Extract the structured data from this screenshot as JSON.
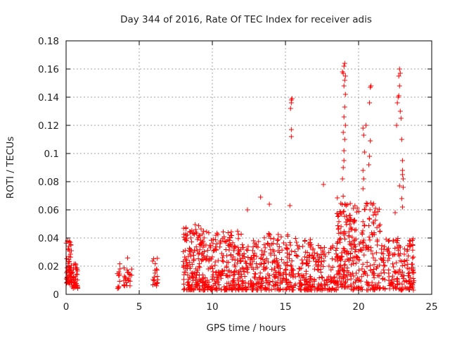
{
  "chart_data": {
    "type": "scatter",
    "title": "Day 344 of 2016, Rate Of TEC Index for receiver adis",
    "xlabel": "GPS time / hours",
    "ylabel": "ROTI / TECUs",
    "xlim": [
      0,
      25
    ],
    "ylim": [
      0,
      0.18
    ],
    "xticks": [
      "0",
      "5",
      "10",
      "15",
      "20",
      "25"
    ],
    "yticks": [
      "0",
      "0.02",
      "0.04",
      "0.06",
      "0.08",
      "0.1",
      "0.12",
      "0.14",
      "0.16",
      "0.18"
    ],
    "grid": true,
    "marker": "+",
    "color": "#ff0000",
    "series": [
      {
        "clusters": [
          {
            "x": [
              0.0,
              0.4
            ],
            "y": [
              0.008,
              0.038
            ],
            "n": 60
          },
          {
            "x": [
              0.4,
              0.8
            ],
            "y": [
              0.004,
              0.022
            ],
            "n": 40
          },
          {
            "x": [
              3.5,
              3.7
            ],
            "y": [
              0.004,
              0.023
            ],
            "n": 12
          },
          {
            "x": [
              3.9,
              4.4
            ],
            "y": [
              0.006,
              0.02
            ],
            "n": 18
          },
          {
            "x": [
              4.2,
              4.5
            ],
            "y": [
              0.01,
              0.029
            ],
            "n": 8
          },
          {
            "x": [
              5.9,
              6.3
            ],
            "y": [
              0.006,
              0.026
            ],
            "n": 20
          },
          {
            "x": [
              8.0,
              9.5
            ],
            "y": [
              0.003,
              0.05
            ],
            "n": 180
          },
          {
            "x": [
              9.5,
              12.0
            ],
            "y": [
              0.003,
              0.045
            ],
            "n": 220
          },
          {
            "x": [
              12.0,
              13.5
            ],
            "y": [
              0.003,
              0.04
            ],
            "n": 120
          },
          {
            "x": [
              13.5,
              15.2
            ],
            "y": [
              0.003,
              0.045
            ],
            "n": 140
          },
          {
            "x": [
              15.2,
              17.0
            ],
            "y": [
              0.003,
              0.04
            ],
            "n": 140
          },
          {
            "x": [
              17.0,
              18.5
            ],
            "y": [
              0.003,
              0.035
            ],
            "n": 100
          },
          {
            "x": [
              18.5,
              19.5
            ],
            "y": [
              0.005,
              0.07
            ],
            "n": 140
          },
          {
            "x": [
              19.5,
              21.5
            ],
            "y": [
              0.003,
              0.065
            ],
            "n": 180
          },
          {
            "x": [
              21.5,
              23.8
            ],
            "y": [
              0.003,
              0.04
            ],
            "n": 170
          }
        ],
        "points": [
          [
            15.3,
            0.063
          ],
          [
            15.4,
            0.112
          ],
          [
            15.4,
            0.117
          ],
          [
            15.35,
            0.132
          ],
          [
            15.4,
            0.136
          ],
          [
            15.45,
            0.139
          ],
          [
            15.4,
            0.138
          ],
          [
            17.6,
            0.078
          ],
          [
            18.9,
            0.082
          ],
          [
            18.95,
            0.09
          ],
          [
            19.0,
            0.095
          ],
          [
            19.0,
            0.102
          ],
          [
            19.05,
            0.11
          ],
          [
            18.95,
            0.115
          ],
          [
            19.1,
            0.12
          ],
          [
            19.0,
            0.126
          ],
          [
            19.05,
            0.133
          ],
          [
            19.1,
            0.142
          ],
          [
            19.0,
            0.148
          ],
          [
            19.05,
            0.152
          ],
          [
            18.95,
            0.157
          ],
          [
            19.0,
            0.162
          ],
          [
            19.05,
            0.164
          ],
          [
            18.9,
            0.158
          ],
          [
            19.1,
            0.155
          ],
          [
            20.3,
            0.075
          ],
          [
            20.35,
            0.082
          ],
          [
            20.3,
            0.088
          ],
          [
            20.4,
            0.101
          ],
          [
            20.35,
            0.113
          ],
          [
            20.3,
            0.118
          ],
          [
            20.5,
            0.12
          ],
          [
            20.7,
            0.092
          ],
          [
            20.75,
            0.098
          ],
          [
            20.8,
            0.109
          ],
          [
            20.75,
            0.136
          ],
          [
            20.8,
            0.147
          ],
          [
            20.85,
            0.148
          ],
          [
            22.5,
            0.058
          ],
          [
            22.6,
            0.12
          ],
          [
            22.65,
            0.136
          ],
          [
            22.7,
            0.14
          ],
          [
            22.75,
            0.141
          ],
          [
            22.8,
            0.148
          ],
          [
            22.75,
            0.155
          ],
          [
            22.8,
            0.16
          ],
          [
            22.85,
            0.157
          ],
          [
            22.9,
            0.125
          ],
          [
            22.95,
            0.11
          ],
          [
            23.0,
            0.095
          ],
          [
            23.0,
            0.088
          ],
          [
            23.05,
            0.082
          ],
          [
            23.05,
            0.076
          ],
          [
            22.95,
            0.068
          ],
          [
            23.0,
            0.062
          ],
          [
            22.85,
            0.13
          ],
          [
            23.0,
            0.085
          ],
          [
            22.8,
            0.077
          ],
          [
            12.4,
            0.06
          ],
          [
            13.3,
            0.069
          ],
          [
            13.9,
            0.064
          ]
        ]
      }
    ]
  }
}
